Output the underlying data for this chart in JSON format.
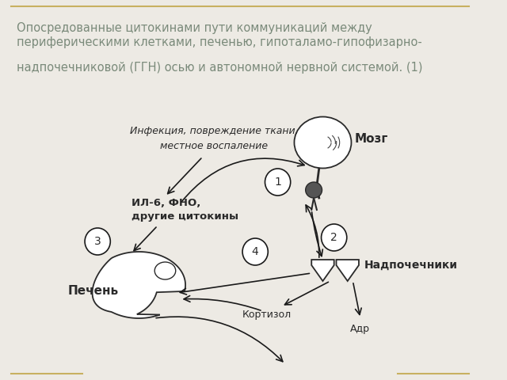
{
  "title_line1": "Опосредованные цитокинами пути коммуникаций между",
  "title_line2": "периферическими клетками, печенью, гипоталамо-гипофизарно-",
  "title_line3": "надпочечниковой (ГГН) осью и автономной нервной системой. (1)",
  "title_color": "#7a8a7a",
  "title_fontsize": 10.5,
  "bg_color": "#edeae4",
  "label_infection": "Инфекция, повреждение ткани,\nместное воспаление",
  "label_cytokines": "ИЛ-6, ФНО,\nдругие цитокины",
  "label_brain": "Мозг",
  "label_adrenal": "Надпочечники",
  "label_liver": "Печень",
  "label_cortisol": "Кортизол",
  "label_adr": "Адр",
  "num1": "1",
  "num2": "2",
  "num3": "3",
  "num4": "4",
  "border_color": "#c8b060",
  "text_color": "#2a2a2a",
  "arrow_color": "#1a1a1a",
  "circle_color": "#ffffff"
}
